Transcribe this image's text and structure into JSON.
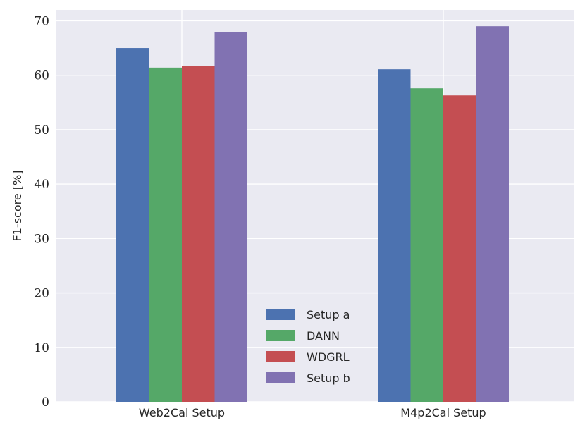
{
  "chart_data": {
    "type": "bar",
    "title": "",
    "xlabel": "",
    "ylabel": "F1-score [%]",
    "categories": [
      "Web2Cal Setup",
      "M4p2Cal Setup"
    ],
    "ylim": [
      0,
      72
    ],
    "yticks": [
      0,
      10,
      20,
      30,
      40,
      50,
      60,
      70
    ],
    "grid": true,
    "legend_position": "bottom-center",
    "series": [
      {
        "name": "Setup a",
        "color": "#4c72b0",
        "values": [
          65.0,
          61.1
        ]
      },
      {
        "name": "DANN",
        "color": "#55a868",
        "values": [
          61.4,
          57.6
        ]
      },
      {
        "name": "WDGRL",
        "color": "#c44e52",
        "values": [
          61.7,
          56.3
        ]
      },
      {
        "name": "Setup b",
        "color": "#8172b2",
        "values": [
          67.9,
          69.0
        ]
      }
    ]
  }
}
